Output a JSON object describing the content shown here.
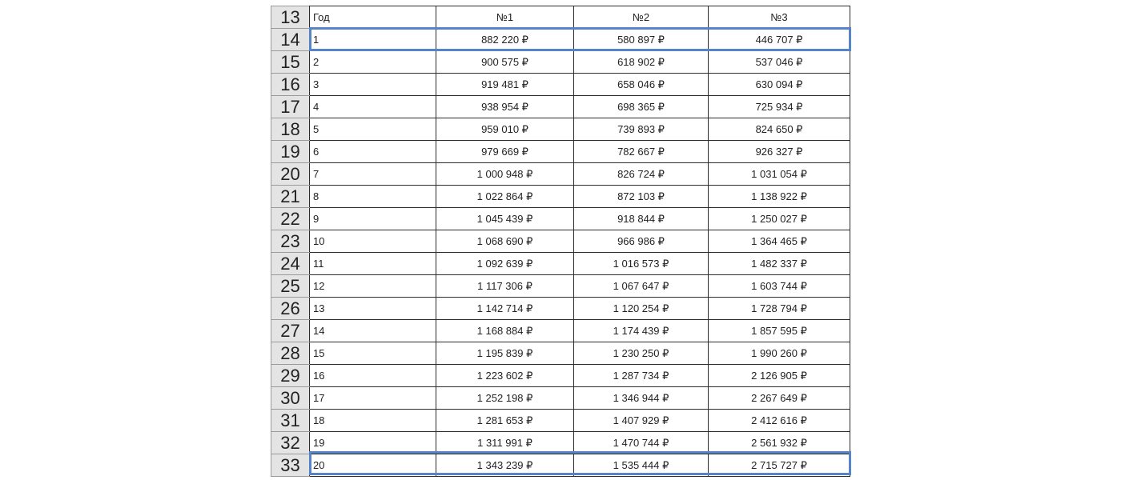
{
  "accent_color": "#5585c8",
  "header": {
    "row_number": "13",
    "columns": [
      "Год",
      "№1",
      "№2",
      "№3"
    ]
  },
  "rows": [
    {
      "row_number": "14",
      "year": "1",
      "v1": "882 220 ₽",
      "v2": "580 897 ₽",
      "v3": "446 707 ₽",
      "highlighted": true
    },
    {
      "row_number": "15",
      "year": "2",
      "v1": "900 575 ₽",
      "v2": "618 902 ₽",
      "v3": "537 046 ₽"
    },
    {
      "row_number": "16",
      "year": "3",
      "v1": "919 481 ₽",
      "v2": "658 046 ₽",
      "v3": "630 094 ₽"
    },
    {
      "row_number": "17",
      "year": "4",
      "v1": "938 954 ₽",
      "v2": "698 365 ₽",
      "v3": "725 934 ₽"
    },
    {
      "row_number": "18",
      "year": "5",
      "v1": "959 010 ₽",
      "v2": "739 893 ₽",
      "v3": "824 650 ₽"
    },
    {
      "row_number": "19",
      "year": "6",
      "v1": "979 669 ₽",
      "v2": "782 667 ₽",
      "v3": "926 327 ₽"
    },
    {
      "row_number": "20",
      "year": "7",
      "v1": "1 000 948 ₽",
      "v2": "826 724 ₽",
      "v3": "1 031 054 ₽"
    },
    {
      "row_number": "21",
      "year": "8",
      "v1": "1 022 864 ₽",
      "v2": "872 103 ₽",
      "v3": "1 138 922 ₽"
    },
    {
      "row_number": "22",
      "year": "9",
      "v1": "1 045 439 ₽",
      "v2": "918 844 ₽",
      "v3": "1 250 027 ₽"
    },
    {
      "row_number": "23",
      "year": "10",
      "v1": "1 068 690 ₽",
      "v2": "966 986 ₽",
      "v3": "1 364 465 ₽"
    },
    {
      "row_number": "24",
      "year": "11",
      "v1": "1 092 639 ₽",
      "v2": "1 016 573 ₽",
      "v3": "1 482 337 ₽"
    },
    {
      "row_number": "25",
      "year": "12",
      "v1": "1 117 306 ₽",
      "v2": "1 067 647 ₽",
      "v3": "1 603 744 ₽"
    },
    {
      "row_number": "26",
      "year": "13",
      "v1": "1 142 714 ₽",
      "v2": "1 120 254 ₽",
      "v3": "1 728 794 ₽"
    },
    {
      "row_number": "27",
      "year": "14",
      "v1": "1 168 884 ₽",
      "v2": "1 174 439 ₽",
      "v3": "1 857 595 ₽"
    },
    {
      "row_number": "28",
      "year": "15",
      "v1": "1 195 839 ₽",
      "v2": "1 230 250 ₽",
      "v3": "1 990 260 ₽"
    },
    {
      "row_number": "29",
      "year": "16",
      "v1": "1 223 602 ₽",
      "v2": "1 287 734 ₽",
      "v3": "2 126 905 ₽"
    },
    {
      "row_number": "30",
      "year": "17",
      "v1": "1 252 198 ₽",
      "v2": "1 346 944 ₽",
      "v3": "2 267 649 ₽"
    },
    {
      "row_number": "31",
      "year": "18",
      "v1": "1 281 653 ₽",
      "v2": "1 407 929 ₽",
      "v3": "2 412 616 ₽"
    },
    {
      "row_number": "32",
      "year": "19",
      "v1": "1 311 991 ₽",
      "v2": "1 470 744 ₽",
      "v3": "2 561 932 ₽"
    },
    {
      "row_number": "33",
      "year": "20",
      "v1": "1 343 239 ₽",
      "v2": "1 535 444 ₽",
      "v3": "2 715 727 ₽",
      "highlighted": true
    }
  ]
}
